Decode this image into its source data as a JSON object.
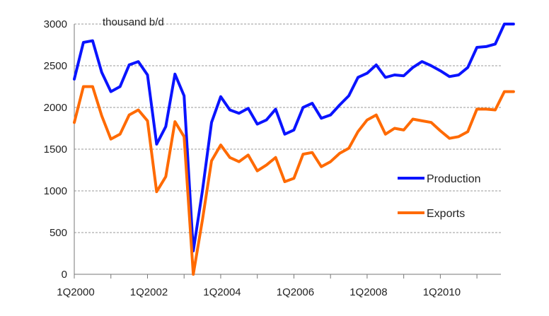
{
  "chart_data": {
    "type": "line",
    "unit_label": "thousand b/d",
    "x": [
      "1Q2000",
      "2Q2000",
      "3Q2000",
      "4Q2000",
      "1Q2001",
      "2Q2001",
      "3Q2001",
      "4Q2001",
      "1Q2002",
      "2Q2002",
      "3Q2002",
      "4Q2002",
      "1Q2003",
      "2Q2003",
      "3Q2003",
      "4Q2003",
      "1Q2004",
      "2Q2004",
      "3Q2004",
      "4Q2004",
      "1Q2005",
      "2Q2005",
      "3Q2005",
      "4Q2005",
      "1Q2006",
      "2Q2006",
      "3Q2006",
      "4Q2006",
      "1Q2007",
      "2Q2007",
      "3Q2007",
      "4Q2007",
      "1Q2008",
      "2Q2008",
      "3Q2008",
      "4Q2008",
      "1Q2009",
      "2Q2009",
      "3Q2009",
      "4Q2009",
      "1Q2010",
      "2Q2010",
      "3Q2010",
      "4Q2010",
      "1Q2011",
      "2Q2011",
      "3Q2011",
      "4Q2011",
      "1Q2012"
    ],
    "x_tick_labels": [
      "1Q2000",
      "1Q2002",
      "1Q2004",
      "1Q2006",
      "1Q2008",
      "1Q2010"
    ],
    "y_ticks": [
      0,
      500,
      1000,
      1500,
      2000,
      2500,
      3000
    ],
    "ylim": [
      0,
      3000
    ],
    "grid": "horizontal dashed",
    "legend_position": "right",
    "series": [
      {
        "name": "Production",
        "color": "#0a14ff",
        "values": [
          2340,
          2780,
          2800,
          2420,
          2190,
          2250,
          2510,
          2550,
          2390,
          1560,
          1770,
          2400,
          2140,
          280,
          1000,
          1820,
          2130,
          1970,
          1930,
          1990,
          1800,
          1850,
          1980,
          1680,
          1730,
          2000,
          2050,
          1870,
          1910,
          2030,
          2140,
          2360,
          2410,
          2510,
          2360,
          2390,
          2380,
          2480,
          2550,
          2500,
          2440,
          2370,
          2390,
          2480,
          2720,
          2730,
          2760,
          3000,
          3000
        ]
      },
      {
        "name": "Exports",
        "color": "#ff6a00",
        "values": [
          1820,
          2250,
          2250,
          1900,
          1620,
          1680,
          1910,
          1970,
          1840,
          990,
          1170,
          1830,
          1650,
          0,
          650,
          1360,
          1550,
          1400,
          1350,
          1430,
          1240,
          1310,
          1400,
          1110,
          1150,
          1440,
          1460,
          1290,
          1350,
          1450,
          1510,
          1710,
          1850,
          1910,
          1680,
          1750,
          1730,
          1860,
          1840,
          1820,
          1720,
          1630,
          1650,
          1710,
          1980,
          1980,
          1970,
          2190,
          2190
        ]
      }
    ]
  }
}
